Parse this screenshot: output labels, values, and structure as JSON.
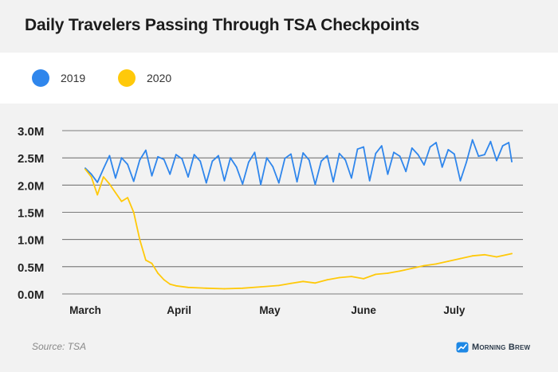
{
  "title": "Daily Travelers Passing Through TSA Checkpoints",
  "source": "Source: TSA",
  "brand": "Morning Brew",
  "colors": {
    "background": "#f2f2f2",
    "legend_band": "#ffffff",
    "grid": "#555555",
    "series_2019": "#2f86ec",
    "series_2020": "#ffc90a",
    "brand": "#1e88e5"
  },
  "icons": {
    "brand_logo": "morning-brew-logo"
  },
  "chart_data": {
    "type": "line",
    "legend_position": "top",
    "grid": "horizontal",
    "x_unit": "date",
    "xlim": [
      "2020-03-01",
      "2020-07-20"
    ],
    "ylim": [
      0,
      3000000
    ],
    "y_ticks": [
      {
        "value": 0,
        "label": "0.0M"
      },
      {
        "value": 500000,
        "label": "0.5M"
      },
      {
        "value": 1000000,
        "label": "1.0M"
      },
      {
        "value": 1500000,
        "label": "1.5M"
      },
      {
        "value": 2000000,
        "label": "2.0M"
      },
      {
        "value": 2500000,
        "label": "2.5M"
      },
      {
        "value": 3000000,
        "label": "3.0M"
      }
    ],
    "x_ticks": [
      {
        "value": "2020-03-01",
        "label": "March"
      },
      {
        "value": "2020-04-01",
        "label": "April"
      },
      {
        "value": "2020-05-01",
        "label": "May"
      },
      {
        "value": "2020-06-01",
        "label": "June"
      },
      {
        "value": "2020-07-01",
        "label": "July"
      }
    ],
    "series": [
      {
        "name": "2019",
        "color": "#2f86ec",
        "points": [
          [
            "2020-03-01",
            2310000
          ],
          [
            "2020-03-03",
            2200000
          ],
          [
            "2020-03-05",
            2050000
          ],
          [
            "2020-03-07",
            2300000
          ],
          [
            "2020-03-09",
            2540000
          ],
          [
            "2020-03-11",
            2130000
          ],
          [
            "2020-03-13",
            2500000
          ],
          [
            "2020-03-15",
            2380000
          ],
          [
            "2020-03-17",
            2070000
          ],
          [
            "2020-03-19",
            2460000
          ],
          [
            "2020-03-21",
            2640000
          ],
          [
            "2020-03-23",
            2170000
          ],
          [
            "2020-03-25",
            2520000
          ],
          [
            "2020-03-27",
            2470000
          ],
          [
            "2020-03-29",
            2200000
          ],
          [
            "2020-03-31",
            2560000
          ],
          [
            "2020-04-02",
            2480000
          ],
          [
            "2020-04-04",
            2150000
          ],
          [
            "2020-04-06",
            2560000
          ],
          [
            "2020-04-08",
            2440000
          ],
          [
            "2020-04-10",
            2040000
          ],
          [
            "2020-04-12",
            2440000
          ],
          [
            "2020-04-14",
            2540000
          ],
          [
            "2020-04-16",
            2080000
          ],
          [
            "2020-04-18",
            2500000
          ],
          [
            "2020-04-20",
            2330000
          ],
          [
            "2020-04-22",
            2020000
          ],
          [
            "2020-04-24",
            2420000
          ],
          [
            "2020-04-26",
            2600000
          ],
          [
            "2020-04-28",
            2010000
          ],
          [
            "2020-04-30",
            2500000
          ],
          [
            "2020-05-02",
            2340000
          ],
          [
            "2020-05-04",
            2040000
          ],
          [
            "2020-05-06",
            2490000
          ],
          [
            "2020-05-08",
            2570000
          ],
          [
            "2020-05-10",
            2060000
          ],
          [
            "2020-05-12",
            2590000
          ],
          [
            "2020-05-14",
            2460000
          ],
          [
            "2020-05-16",
            2010000
          ],
          [
            "2020-05-18",
            2440000
          ],
          [
            "2020-05-20",
            2540000
          ],
          [
            "2020-05-22",
            2060000
          ],
          [
            "2020-05-24",
            2580000
          ],
          [
            "2020-05-26",
            2460000
          ],
          [
            "2020-05-28",
            2130000
          ],
          [
            "2020-05-30",
            2660000
          ],
          [
            "2020-06-01",
            2700000
          ],
          [
            "2020-06-03",
            2080000
          ],
          [
            "2020-06-05",
            2580000
          ],
          [
            "2020-06-07",
            2720000
          ],
          [
            "2020-06-09",
            2200000
          ],
          [
            "2020-06-11",
            2600000
          ],
          [
            "2020-06-13",
            2530000
          ],
          [
            "2020-06-15",
            2250000
          ],
          [
            "2020-06-17",
            2680000
          ],
          [
            "2020-06-19",
            2560000
          ],
          [
            "2020-06-21",
            2370000
          ],
          [
            "2020-06-23",
            2700000
          ],
          [
            "2020-06-25",
            2780000
          ],
          [
            "2020-06-27",
            2330000
          ],
          [
            "2020-06-29",
            2650000
          ],
          [
            "2020-07-01",
            2570000
          ],
          [
            "2020-07-03",
            2080000
          ],
          [
            "2020-07-05",
            2420000
          ],
          [
            "2020-07-07",
            2830000
          ],
          [
            "2020-07-09",
            2530000
          ],
          [
            "2020-07-11",
            2560000
          ],
          [
            "2020-07-13",
            2800000
          ],
          [
            "2020-07-15",
            2450000
          ],
          [
            "2020-07-17",
            2720000
          ],
          [
            "2020-07-19",
            2780000
          ],
          [
            "2020-07-20",
            2430000
          ]
        ]
      },
      {
        "name": "2020",
        "color": "#ffc90a",
        "points": [
          [
            "2020-03-01",
            2290000
          ],
          [
            "2020-03-03",
            2150000
          ],
          [
            "2020-03-05",
            1820000
          ],
          [
            "2020-03-07",
            2150000
          ],
          [
            "2020-03-09",
            2020000
          ],
          [
            "2020-03-11",
            1860000
          ],
          [
            "2020-03-13",
            1700000
          ],
          [
            "2020-03-15",
            1770000
          ],
          [
            "2020-03-17",
            1500000
          ],
          [
            "2020-03-19",
            1000000
          ],
          [
            "2020-03-21",
            620000
          ],
          [
            "2020-03-23",
            560000
          ],
          [
            "2020-03-25",
            380000
          ],
          [
            "2020-03-27",
            260000
          ],
          [
            "2020-03-29",
            180000
          ],
          [
            "2020-03-31",
            150000
          ],
          [
            "2020-04-04",
            120000
          ],
          [
            "2020-04-10",
            105000
          ],
          [
            "2020-04-16",
            95000
          ],
          [
            "2020-04-22",
            105000
          ],
          [
            "2020-04-28",
            130000
          ],
          [
            "2020-05-04",
            155000
          ],
          [
            "2020-05-08",
            195000
          ],
          [
            "2020-05-12",
            230000
          ],
          [
            "2020-05-16",
            200000
          ],
          [
            "2020-05-20",
            260000
          ],
          [
            "2020-05-24",
            300000
          ],
          [
            "2020-05-28",
            320000
          ],
          [
            "2020-06-01",
            280000
          ],
          [
            "2020-06-05",
            360000
          ],
          [
            "2020-06-09",
            380000
          ],
          [
            "2020-06-13",
            420000
          ],
          [
            "2020-06-17",
            470000
          ],
          [
            "2020-06-21",
            520000
          ],
          [
            "2020-06-25",
            550000
          ],
          [
            "2020-06-29",
            600000
          ],
          [
            "2020-07-03",
            650000
          ],
          [
            "2020-07-07",
            700000
          ],
          [
            "2020-07-11",
            720000
          ],
          [
            "2020-07-15",
            680000
          ],
          [
            "2020-07-20",
            740000
          ]
        ]
      }
    ]
  }
}
